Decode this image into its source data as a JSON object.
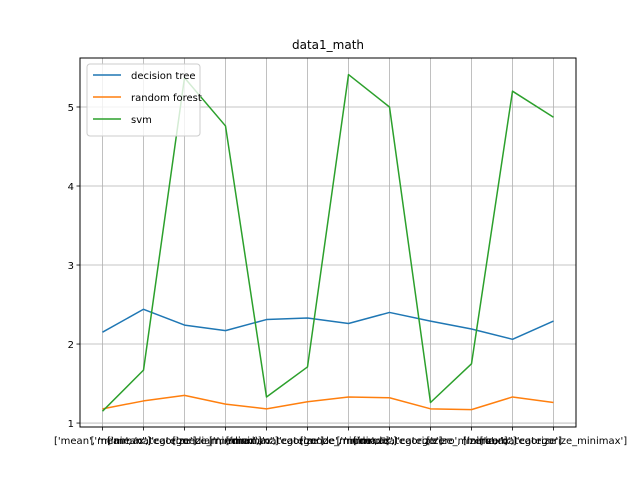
{
  "chart_data": {
    "type": "line",
    "title": "data1_math",
    "xlabel": "",
    "ylabel": "",
    "categories": [
      "['mean', 'minimax']",
      "['mean', 'categorize']",
      "['mean', 'categorize_minimax']",
      "['median', 'minimax']",
      "['median', 'categorize']",
      "['median', 'categorize_minimax']",
      "['mode', 'minimax']",
      "['mode', 'categorize']",
      "['mode', 'categorize_minimax']",
      "['zero', 'minimax']",
      "['zero', 'categorize']",
      "['zero', 'categorize_minimax']"
    ],
    "ylim": [
      0.95,
      5.62
    ],
    "yticks": [
      1,
      2,
      3,
      4,
      5
    ],
    "grid": true,
    "legend_position": "top-left",
    "series": [
      {
        "name": "decision tree",
        "color": "#1f77b4",
        "values": [
          2.15,
          2.44,
          2.24,
          2.17,
          2.31,
          2.33,
          2.26,
          2.4,
          2.29,
          2.19,
          2.06,
          2.29
        ]
      },
      {
        "name": "random forest",
        "color": "#ff7f0e",
        "values": [
          1.18,
          1.28,
          1.35,
          1.24,
          1.18,
          1.27,
          1.33,
          1.32,
          1.18,
          1.17,
          1.33,
          1.26
        ]
      },
      {
        "name": "svm",
        "color": "#2ca02c",
        "values": [
          1.15,
          1.67,
          5.37,
          4.76,
          1.33,
          1.71,
          5.41,
          5.0,
          1.26,
          1.75,
          5.2,
          4.87
        ]
      }
    ]
  }
}
